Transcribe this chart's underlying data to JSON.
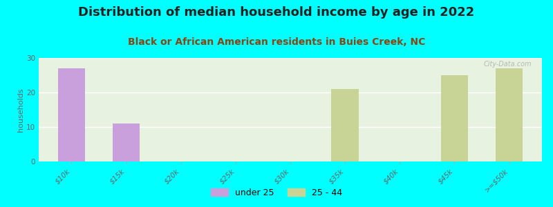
{
  "title": "Distribution of median household income by age in 2022",
  "subtitle": "Black or African American residents in Buies Creek, NC",
  "ylabel": "households",
  "background_color": "#00FFFF",
  "plot_bg_color": "#e8f0d8",
  "categories": [
    "$10k",
    "$15k",
    "$20k",
    "$25k",
    "$30k",
    "$35k",
    "$40k",
    "$45k",
    ">=$50k"
  ],
  "under25_values": [
    27,
    11,
    0,
    0,
    0,
    0,
    0,
    0,
    0
  ],
  "age2544_values": [
    0,
    0,
    0,
    0,
    0,
    21,
    0,
    25,
    27
  ],
  "under25_color": "#c9a0dc",
  "age2544_color": "#c8d496",
  "ylim": [
    0,
    30
  ],
  "yticks": [
    0,
    10,
    20,
    30
  ],
  "bar_width": 0.5,
  "title_fontsize": 13,
  "subtitle_fontsize": 10,
  "ylabel_fontsize": 8,
  "tick_fontsize": 7.5,
  "legend_fontsize": 9,
  "watermark": "City-Data.com"
}
